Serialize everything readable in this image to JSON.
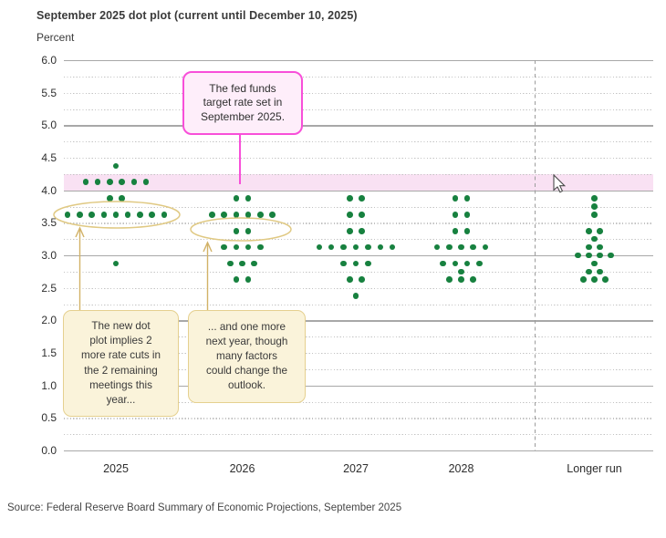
{
  "header": {
    "title": "September 2025 dot plot (current until December 10, 2025)",
    "unit_label": "Percent"
  },
  "annotations": {
    "target_rate": {
      "text": "The fed funds\ntarget rate set in\nSeptember 2025."
    },
    "cuts_this_year": {
      "text": "The new dot\nplot implies 2\nmore rate cuts in\nthe 2 remaining\nmeetings this\nyear..."
    },
    "one_more": {
      "text": "... and one more\nnext year, though\nmany factors\ncould change the\noutlook."
    }
  },
  "footer": {
    "source": "Source: Federal Reserve Board Summary of Economic Projections, September 2025"
  },
  "icons": {
    "cursor": "mouse-pointer"
  },
  "colors": {
    "dot_green": "#17813f",
    "band_pink": "#f9e1f3",
    "magenta_accent": "#f84fd9",
    "tan_fill": "#faf3da",
    "tan_border": "#e5d08f",
    "arrow_gold": "#d2b267",
    "ellipse_gold": "#e0c983",
    "grid_solid": "#a8a8a8",
    "grid_dotted": "#c3c3c3"
  },
  "chart_data": {
    "type": "scatter",
    "subtype": "fomc-dot-plot",
    "title": "September 2025 dot plot (current until December 10, 2025)",
    "ylabel": "Percent",
    "ylim": [
      0.0,
      6.0
    ],
    "y_label_step": 0.5,
    "gridline_step": 0.25,
    "grid": "solid lines at integers, dotted at quarter points",
    "target_band": {
      "from": 4.0,
      "to": 4.25,
      "note": "fed funds target range set in September 2025"
    },
    "separator_before": "Longer run",
    "categories": [
      "2025",
      "2026",
      "2027",
      "2028",
      "Longer run"
    ],
    "columns": [
      {
        "label": "2025",
        "dots": [
          {
            "rate": 4.375,
            "count": 1
          },
          {
            "rate": 4.125,
            "count": 6
          },
          {
            "rate": 3.875,
            "count": 2
          },
          {
            "rate": 3.625,
            "count": 9
          },
          {
            "rate": 2.875,
            "count": 1
          }
        ],
        "circled_rate": 3.625
      },
      {
        "label": "2026",
        "dots": [
          {
            "rate": 3.875,
            "count": 2
          },
          {
            "rate": 3.625,
            "count": 6
          },
          {
            "rate": 3.375,
            "count": 2
          },
          {
            "rate": 3.125,
            "count": 4
          },
          {
            "rate": 2.875,
            "count": 3
          },
          {
            "rate": 2.625,
            "count": 2
          }
        ],
        "circled_rate": 3.375
      },
      {
        "label": "2027",
        "dots": [
          {
            "rate": 3.875,
            "count": 2
          },
          {
            "rate": 3.625,
            "count": 2
          },
          {
            "rate": 3.375,
            "count": 2
          },
          {
            "rate": 3.125,
            "count": 7
          },
          {
            "rate": 2.875,
            "count": 3
          },
          {
            "rate": 2.625,
            "count": 2
          },
          {
            "rate": 2.375,
            "count": 1
          }
        ]
      },
      {
        "label": "2028",
        "dots": [
          {
            "rate": 3.875,
            "count": 2
          },
          {
            "rate": 3.625,
            "count": 2
          },
          {
            "rate": 3.375,
            "count": 2
          },
          {
            "rate": 3.125,
            "count": 5
          },
          {
            "rate": 2.875,
            "count": 4
          },
          {
            "rate": 2.75,
            "count": 1
          },
          {
            "rate": 2.625,
            "count": 3
          }
        ]
      },
      {
        "label": "Longer run",
        "dots": [
          {
            "rate": 3.875,
            "count": 1
          },
          {
            "rate": 3.75,
            "count": 1
          },
          {
            "rate": 3.625,
            "count": 1
          },
          {
            "rate": 3.375,
            "count": 2
          },
          {
            "rate": 3.25,
            "count": 1
          },
          {
            "rate": 3.125,
            "count": 2
          },
          {
            "rate": 3.0,
            "count": 4
          },
          {
            "rate": 2.875,
            "count": 1
          },
          {
            "rate": 2.75,
            "count": 2
          },
          {
            "rate": 2.625,
            "count": 3
          }
        ]
      }
    ]
  }
}
